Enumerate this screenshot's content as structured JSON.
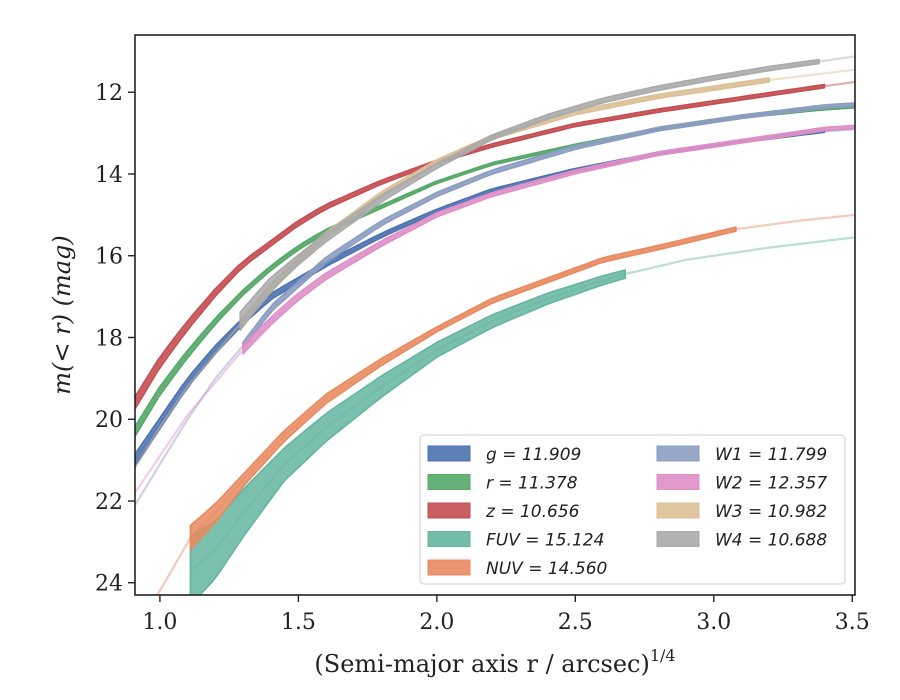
{
  "chart_data": {
    "type": "line",
    "xlabel": "(Semi-major axis r / arcsec)",
    "xlabel_exponent": "1/4",
    "ylabel": "m(< r) (mag)",
    "xlim": [
      0.91,
      3.51
    ],
    "ylim": [
      24.3,
      10.6
    ],
    "y_inverted": true,
    "x_ticks": [
      1.0,
      1.5,
      2.0,
      2.5,
      3.0,
      3.5
    ],
    "x_tick_labels": [
      "1.0",
      "1.5",
      "2.0",
      "2.5",
      "3.0",
      "3.5"
    ],
    "y_ticks": [
      12,
      14,
      16,
      18,
      20,
      22,
      24
    ],
    "y_tick_labels": [
      "12",
      "14",
      "16",
      "18",
      "20",
      "22",
      "24"
    ],
    "grid": false,
    "legend_position": "lower-right",
    "series": [
      {
        "name": "g",
        "legend_label": "g = 11.909",
        "color": "#4c72b0",
        "x": [
          0.91,
          1.0,
          1.1,
          1.2,
          1.3,
          1.4,
          1.5,
          1.6,
          1.8,
          2.0,
          2.2,
          2.5,
          2.8,
          3.1,
          3.4,
          3.51
        ],
        "y": [
          21.0,
          20.1,
          19.1,
          18.3,
          17.6,
          17.0,
          16.6,
          16.2,
          15.5,
          14.9,
          14.4,
          13.9,
          13.5,
          13.2,
          12.95,
          12.9
        ],
        "solid_until": 3.4,
        "band": [
          [
            0.91,
            0.15
          ],
          [
            1.3,
            0.08
          ],
          [
            2.0,
            0.04
          ],
          [
            3.4,
            0.03
          ]
        ]
      },
      {
        "name": "r",
        "legend_label": "r = 11.378",
        "color": "#55a868",
        "x": [
          0.91,
          1.0,
          1.1,
          1.2,
          1.3,
          1.4,
          1.5,
          1.6,
          1.8,
          2.0,
          2.2,
          2.5,
          2.8,
          3.1,
          3.4,
          3.51
        ],
        "y": [
          20.3,
          19.3,
          18.4,
          17.6,
          16.9,
          16.3,
          15.8,
          15.4,
          14.8,
          14.2,
          13.75,
          13.3,
          12.9,
          12.6,
          12.4,
          12.35
        ],
        "solid_until": 3.51,
        "band": [
          [
            0.91,
            0.12
          ],
          [
            1.3,
            0.06
          ],
          [
            2.0,
            0.03
          ],
          [
            3.5,
            0.03
          ]
        ]
      },
      {
        "name": "z",
        "legend_label": "z = 10.656",
        "color": "#c44e52",
        "x": [
          0.91,
          1.0,
          1.1,
          1.2,
          1.3,
          1.4,
          1.5,
          1.6,
          1.8,
          2.0,
          2.2,
          2.5,
          2.8,
          3.1,
          3.4,
          3.51
        ],
        "y": [
          19.6,
          18.6,
          17.7,
          16.9,
          16.2,
          15.7,
          15.2,
          14.8,
          14.2,
          13.7,
          13.3,
          12.8,
          12.45,
          12.15,
          11.85,
          11.75
        ],
        "solid_until": 3.4,
        "band": [
          [
            0.91,
            0.15
          ],
          [
            1.3,
            0.07
          ],
          [
            2.0,
            0.04
          ],
          [
            3.4,
            0.04
          ]
        ]
      },
      {
        "name": "FUV",
        "legend_label": "FUV = 15.124",
        "color": "#64b5a0",
        "x": [
          1.11,
          1.2,
          1.3,
          1.45,
          1.6,
          1.8,
          2.0,
          2.2,
          2.4,
          2.6,
          2.68,
          2.9,
          3.2,
          3.51
        ],
        "y": [
          23.7,
          23.2,
          22.3,
          21.1,
          20.2,
          19.2,
          18.3,
          17.6,
          17.05,
          16.6,
          16.45,
          16.1,
          15.8,
          15.55
        ],
        "solid_until": 2.68,
        "band": [
          [
            1.11,
            0.85
          ],
          [
            1.2,
            0.7
          ],
          [
            1.45,
            0.4
          ],
          [
            2.0,
            0.18
          ],
          [
            2.68,
            0.1
          ]
        ]
      },
      {
        "name": "NUV",
        "legend_label": "NUV = 14.560",
        "color": "#e8895f",
        "x": [
          0.91,
          1.0,
          1.11,
          1.2,
          1.3,
          1.45,
          1.6,
          1.8,
          2.0,
          2.2,
          2.4,
          2.6,
          2.8,
          3.08,
          3.3,
          3.51
        ],
        "y": [
          25.0,
          24.2,
          22.9,
          22.3,
          21.5,
          20.4,
          19.5,
          18.6,
          17.8,
          17.1,
          16.6,
          16.1,
          15.8,
          15.35,
          15.15,
          15.0
        ],
        "solid_until": 3.08,
        "band": [
          [
            1.11,
            0.3
          ],
          [
            1.3,
            0.15
          ],
          [
            2.0,
            0.06
          ],
          [
            3.08,
            0.05
          ]
        ]
      },
      {
        "name": "W1",
        "legend_label": "W1 = 11.799",
        "color": "#8c9dc1",
        "x": [
          0.91,
          1.0,
          1.1,
          1.2,
          1.3,
          1.4,
          1.5,
          1.6,
          1.8,
          2.0,
          2.2,
          2.5,
          2.8,
          3.1,
          3.4,
          3.51
        ],
        "y": [
          22.1,
          21.1,
          20.0,
          19.0,
          18.2,
          17.3,
          16.7,
          16.1,
          15.2,
          14.5,
          13.95,
          13.35,
          12.9,
          12.6,
          12.35,
          12.3
        ],
        "solid_until": 3.51,
        "band": [
          [
            1.3,
            0.08
          ],
          [
            2.0,
            0.05
          ],
          [
            3.5,
            0.04
          ]
        ]
      },
      {
        "name": "W2",
        "legend_label": "W2 = 12.357",
        "color": "#de8fc7",
        "x": [
          0.91,
          1.0,
          1.1,
          1.2,
          1.3,
          1.4,
          1.5,
          1.6,
          1.8,
          2.0,
          2.2,
          2.5,
          2.8,
          3.1,
          3.4,
          3.51
        ],
        "y": [
          21.8,
          20.9,
          19.9,
          19.1,
          18.3,
          17.6,
          17.0,
          16.5,
          15.7,
          15.0,
          14.5,
          13.95,
          13.5,
          13.2,
          12.9,
          12.85
        ],
        "solid_until": 3.51,
        "band": [
          [
            1.3,
            0.1
          ],
          [
            2.0,
            0.05
          ],
          [
            3.5,
            0.04
          ]
        ]
      },
      {
        "name": "W3",
        "legend_label": "W3 = 10.982",
        "color": "#dcbf96",
        "x": [
          0.91,
          1.0,
          1.1,
          1.2,
          1.3,
          1.4,
          1.5,
          1.6,
          1.8,
          2.0,
          2.2,
          2.5,
          2.8,
          3.1,
          3.2,
          3.51
        ],
        "y": [
          21.2,
          20.2,
          19.2,
          18.4,
          17.6,
          16.8,
          16.1,
          15.5,
          14.5,
          13.7,
          13.1,
          12.5,
          12.1,
          11.8,
          11.7,
          11.45
        ],
        "solid_until": 3.2,
        "band": [
          [
            1.3,
            0.1
          ],
          [
            2.0,
            0.05
          ],
          [
            3.2,
            0.05
          ]
        ]
      },
      {
        "name": "W4",
        "legend_label": "W4 = 10.688",
        "color": "#aaaaaa",
        "x": [
          1.29,
          1.35,
          1.4,
          1.5,
          1.6,
          1.8,
          2.0,
          2.2,
          2.4,
          2.6,
          2.8,
          3.0,
          3.2,
          3.38,
          3.51
        ],
        "y": [
          17.6,
          17.1,
          16.7,
          16.1,
          15.55,
          14.6,
          13.8,
          13.1,
          12.6,
          12.2,
          11.9,
          11.65,
          11.42,
          11.25,
          11.12
        ],
        "solid_until": 3.38,
        "band": [
          [
            1.29,
            0.22
          ],
          [
            1.5,
            0.12
          ],
          [
            2.0,
            0.06
          ],
          [
            3.38,
            0.05
          ]
        ]
      }
    ],
    "legend_columns": [
      [
        "g",
        "r",
        "z",
        "FUV",
        "NUV"
      ],
      [
        "W1",
        "W2",
        "W3",
        "W4"
      ]
    ]
  }
}
